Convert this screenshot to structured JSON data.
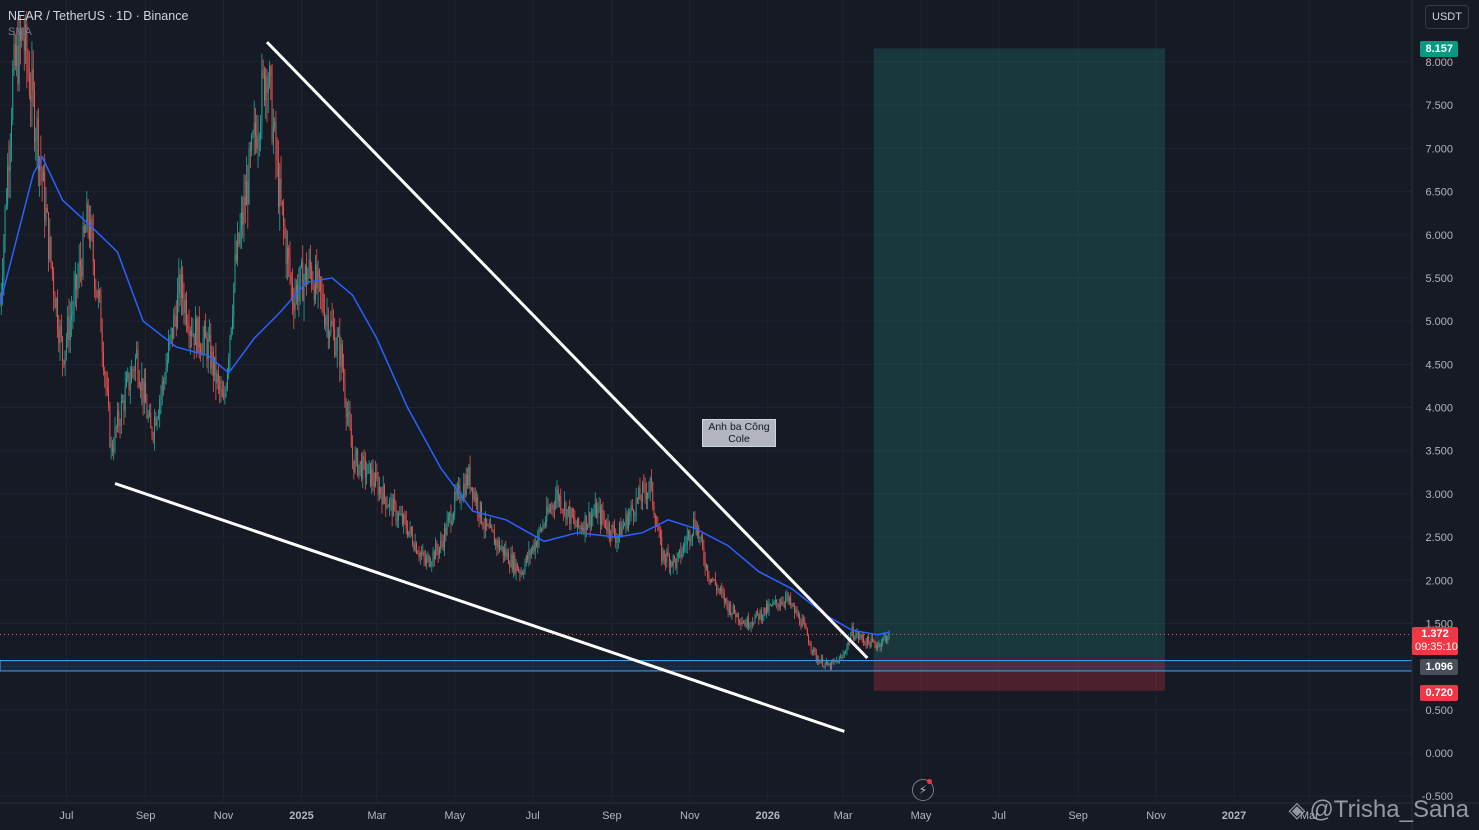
{
  "header": {
    "symbol_title": "NEAR / TetherUS · 1D · Binance",
    "indicator_label": "SMA"
  },
  "toolbar": {
    "currency_label": "USDT"
  },
  "annotation": {
    "line1": "Anh ba Công",
    "line2": "Cole"
  },
  "price_tags": {
    "target": "8.157",
    "current": "1.372",
    "countdown": "09:35:10",
    "entry": "1.096",
    "stop": "0.720"
  },
  "watermark": "@Trisha_Sana",
  "icons": [
    "binance-logo-icon",
    "replay-icon"
  ],
  "colors": {
    "background": "#161a25",
    "up": "#26a69a",
    "down": "#ef5350",
    "sma": "#2962ff",
    "trendline": "#ffffff",
    "zone": "#2196f3",
    "target_zone": "#26a69a",
    "stop_zone": "#f23645"
  },
  "chart_data": {
    "type": "candlestick",
    "title": "NEAR / TetherUS · 1D · Binance",
    "indicator": "SMA",
    "y_unit": "USDT",
    "ylim": [
      -0.5,
      8.6
    ],
    "y_ticks": [
      "8.000",
      "7.500",
      "7.000",
      "6.500",
      "6.000",
      "5.500",
      "5.000",
      "4.500",
      "4.000",
      "3.500",
      "3.000",
      "2.500",
      "2.000",
      "1.500",
      "1.000",
      "0.500",
      "0.000",
      "-0.500"
    ],
    "x_ticks": [
      "Jul",
      "Sep",
      "Nov",
      "2025",
      "Mar",
      "May",
      "Jul",
      "Sep",
      "Nov",
      "2026",
      "Mar",
      "May",
      "Jul",
      "Sep",
      "Nov",
      "2027",
      "Mar"
    ],
    "x_range": [
      "2024-05-10",
      "2027-03-25"
    ],
    "grid": true,
    "price_series": [
      [
        "2024-05-10",
        5.2
      ],
      [
        "2024-05-20",
        7.8
      ],
      [
        "2024-05-28",
        8.3
      ],
      [
        "2024-06-08",
        7.2
      ],
      [
        "2024-06-18",
        5.8
      ],
      [
        "2024-06-28",
        4.6
      ],
      [
        "2024-07-08",
        5.3
      ],
      [
        "2024-07-18",
        6.2
      ],
      [
        "2024-07-28",
        5.0
      ],
      [
        "2024-08-05",
        3.5
      ],
      [
        "2024-08-15",
        4.1
      ],
      [
        "2024-08-25",
        4.6
      ],
      [
        "2024-09-05",
        3.7
      ],
      [
        "2024-09-15",
        4.3
      ],
      [
        "2024-09-28",
        5.4
      ],
      [
        "2024-10-08",
        4.9
      ],
      [
        "2024-10-20",
        4.7
      ],
      [
        "2024-11-01",
        4.0
      ],
      [
        "2024-11-10",
        5.6
      ],
      [
        "2024-11-22",
        6.8
      ],
      [
        "2024-12-05",
        8.0
      ],
      [
        "2024-12-15",
        6.4
      ],
      [
        "2024-12-25",
        5.3
      ],
      [
        "2025-01-08",
        5.6
      ],
      [
        "2025-01-20",
        5.1
      ],
      [
        "2025-02-01",
        4.6
      ],
      [
        "2025-02-10",
        3.4
      ],
      [
        "2025-02-25",
        3.2
      ],
      [
        "2025-03-10",
        2.9
      ],
      [
        "2025-03-25",
        2.6
      ],
      [
        "2025-04-08",
        2.2
      ],
      [
        "2025-04-20",
        2.4
      ],
      [
        "2025-05-01",
        2.9
      ],
      [
        "2025-05-12",
        3.2
      ],
      [
        "2025-05-25",
        2.6
      ],
      [
        "2025-06-10",
        2.3
      ],
      [
        "2025-06-22",
        2.1
      ],
      [
        "2025-07-05",
        2.5
      ],
      [
        "2025-07-20",
        3.0
      ],
      [
        "2025-08-05",
        2.6
      ],
      [
        "2025-08-20",
        2.8
      ],
      [
        "2025-09-05",
        2.5
      ],
      [
        "2025-09-20",
        2.9
      ],
      [
        "2025-10-01",
        3.1
      ],
      [
        "2025-10-10",
        2.3
      ],
      [
        "2025-10-22",
        2.2
      ],
      [
        "2025-11-05",
        2.7
      ],
      [
        "2025-11-15",
        2.1
      ],
      [
        "2025-12-01",
        1.7
      ],
      [
        "2025-12-15",
        1.5
      ],
      [
        "2026-01-05",
        1.7
      ],
      [
        "2026-01-15",
        1.8
      ],
      [
        "2026-01-28",
        1.5
      ],
      [
        "2026-02-08",
        1.1
      ],
      [
        "2026-02-18",
        1.0
      ],
      [
        "2026-02-28",
        1.1
      ],
      [
        "2026-03-08",
        1.4
      ],
      [
        "2026-03-18",
        1.3
      ],
      [
        "2026-03-28",
        1.25
      ],
      [
        "2026-04-06",
        1.372
      ]
    ],
    "sma_series": [
      [
        "2024-05-10",
        5.2
      ],
      [
        "2024-06-05",
        6.7
      ],
      [
        "2024-06-12",
        6.9
      ],
      [
        "2024-06-28",
        6.4
      ],
      [
        "2024-07-20",
        6.1
      ],
      [
        "2024-08-10",
        5.8
      ],
      [
        "2024-08-30",
        5.0
      ],
      [
        "2024-09-25",
        4.7
      ],
      [
        "2024-10-20",
        4.6
      ],
      [
        "2024-11-05",
        4.4
      ],
      [
        "2024-11-25",
        4.8
      ],
      [
        "2024-12-15",
        5.1
      ],
      [
        "2025-01-05",
        5.45
      ],
      [
        "2025-01-25",
        5.5
      ],
      [
        "2025-02-10",
        5.3
      ],
      [
        "2025-03-01",
        4.8
      ],
      [
        "2025-03-25",
        4.0
      ],
      [
        "2025-04-20",
        3.3
      ],
      [
        "2025-05-15",
        2.8
      ],
      [
        "2025-06-10",
        2.7
      ],
      [
        "2025-07-10",
        2.45
      ],
      [
        "2025-08-05",
        2.55
      ],
      [
        "2025-09-05",
        2.5
      ],
      [
        "2025-09-25",
        2.55
      ],
      [
        "2025-10-15",
        2.7
      ],
      [
        "2025-11-05",
        2.6
      ],
      [
        "2025-12-01",
        2.4
      ],
      [
        "2025-12-25",
        2.1
      ],
      [
        "2026-01-20",
        1.9
      ],
      [
        "2026-02-15",
        1.6
      ],
      [
        "2026-03-08",
        1.42
      ],
      [
        "2026-03-28",
        1.37
      ],
      [
        "2026-04-06",
        1.4
      ]
    ],
    "trendlines": [
      {
        "from": [
          "2024-12-05",
          8.23
        ],
        "to": [
          "2026-03-20",
          1.1
        ]
      },
      {
        "from": [
          "2024-08-08",
          3.12
        ],
        "to": [
          "2026-03-02",
          0.25
        ]
      }
    ],
    "support_zone": [
      0.95,
      1.07
    ],
    "position": {
      "entry": 1.096,
      "target": 8.157,
      "stop": 0.72,
      "start": "2026-03-25",
      "end": "2026-11-08"
    },
    "current_price": 1.372,
    "annotation": {
      "text": "Anh ba Công Cole",
      "at": [
        "2025-11-20",
        3.81
      ]
    }
  }
}
